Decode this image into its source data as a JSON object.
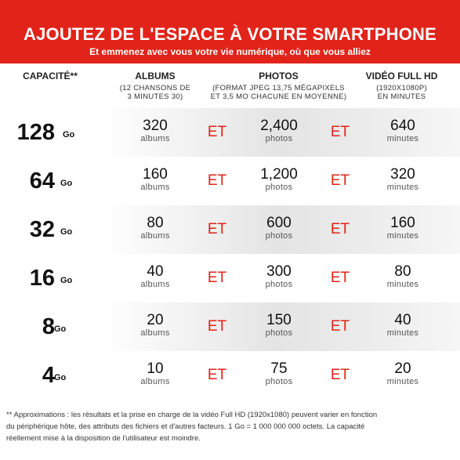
{
  "banner": {
    "title": "AJOUTEZ DE L'ESPACE À VOTRE SMARTPHONE",
    "subtitle": "Et emmenez avec vous votre vie numérique, où que vous alliez"
  },
  "headers": {
    "capacity": "CAPACITÉ**",
    "albums": "ALBUMS",
    "albums_sub1": "(12 CHANSONS DE",
    "albums_sub2": "3 MINUTES 30)",
    "photos": "PHOTOS",
    "photos_sub1": "(FORMAT JPEG 13,75 MÉGAPIXELS",
    "photos_sub2": "ET 3,5 MO CHACUNE EN MOYENNE)",
    "video": "VIDÉO FULL HD",
    "video_sub1": "(1920X1080P)",
    "video_sub2": "EN MINUTES"
  },
  "separator": "ET",
  "units": {
    "capacity": "Go",
    "albums": "albums",
    "photos": "photos",
    "video": "minutes"
  },
  "rows": [
    {
      "capacity": "128",
      "albums": "320",
      "photos": "2,400",
      "video": "640"
    },
    {
      "capacity": "64",
      "albums": "160",
      "photos": "1,200",
      "video": "320"
    },
    {
      "capacity": "32",
      "albums": "80",
      "photos": "600",
      "video": "160"
    },
    {
      "capacity": "16",
      "albums": "40",
      "photos": "300",
      "video": "80"
    },
    {
      "capacity": "8",
      "albums": "20",
      "photos": "150",
      "video": "40"
    },
    {
      "capacity": "4",
      "albums": "10",
      "photos": "75",
      "video": "20"
    }
  ],
  "footnote": {
    "line1": "** Approximations : les résultats et la prise en charge de la vidéo Full HD (1920x1080) peuvent varier en fonction",
    "line2": "du périphérique hôte, des attributs des fichiers et d'autres facteurs. 1 Go = 1 000 000 000 octets. La capacité",
    "line3": "réellement mise à la disposition de l'utilisateur est moindre."
  },
  "colors": {
    "accent": "#e2231a",
    "text": "#222222",
    "shade": "#e4e4e4"
  }
}
